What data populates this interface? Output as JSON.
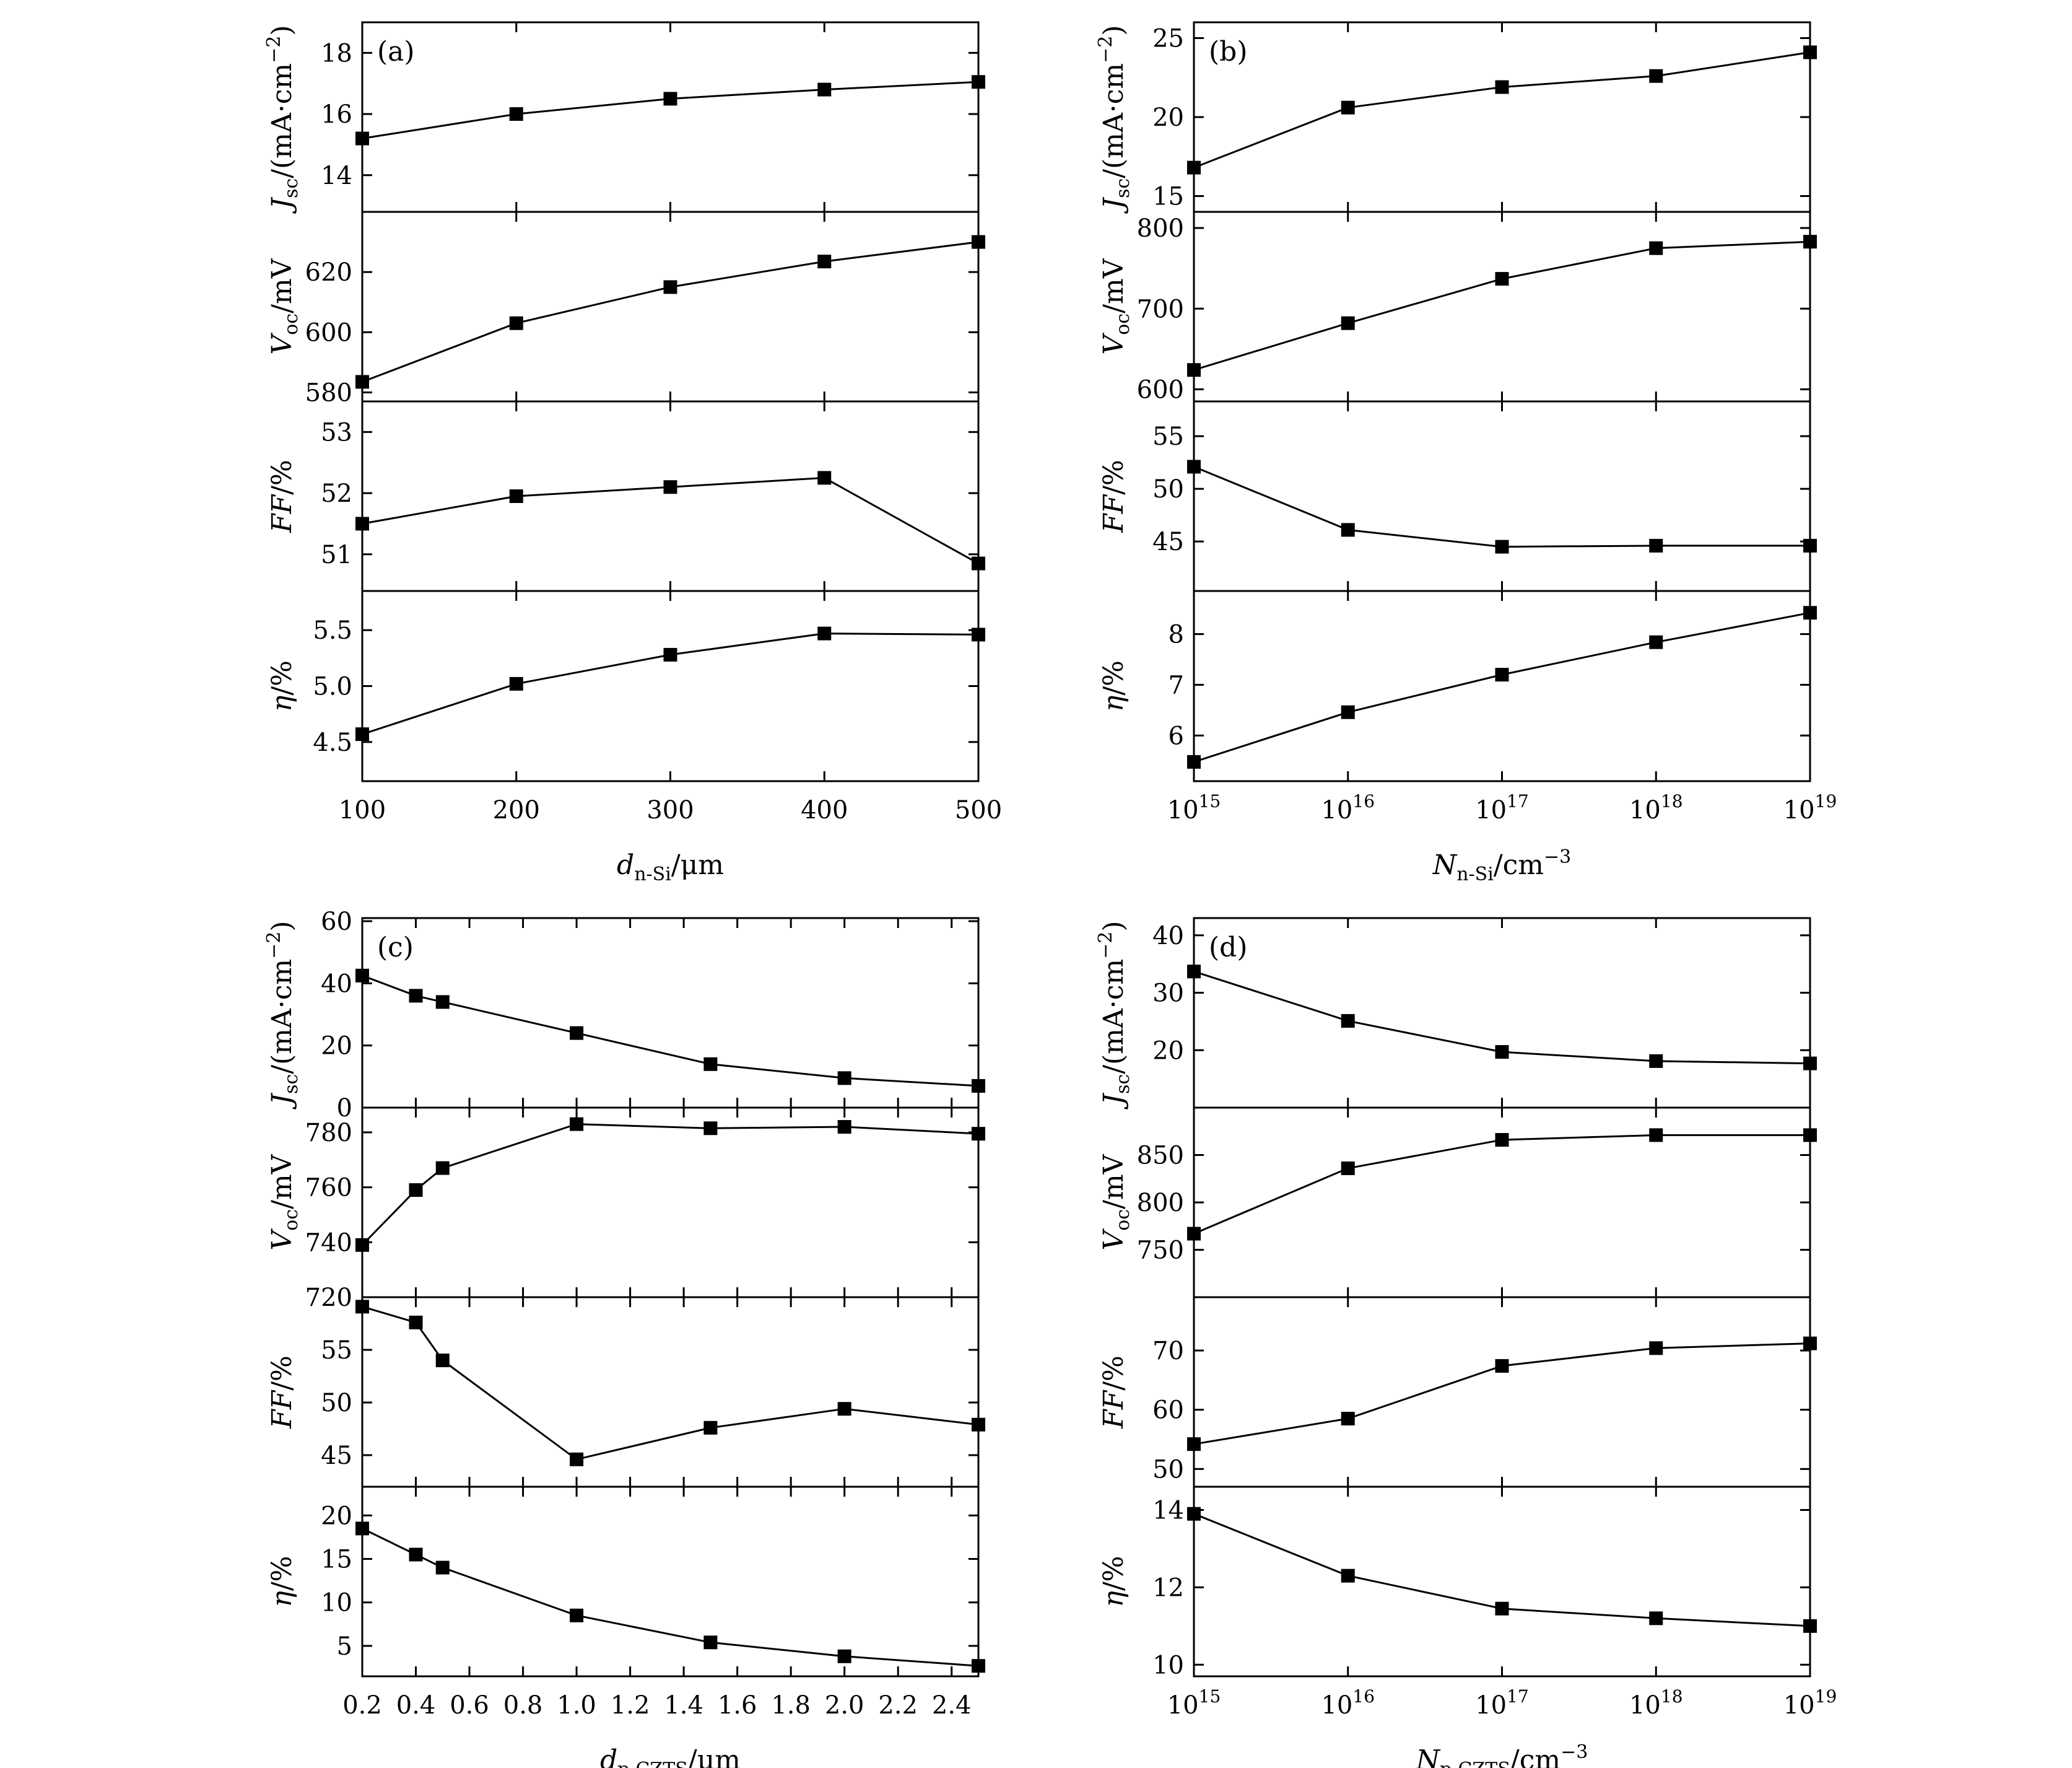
{
  "chart_data": [
    {
      "type": "line",
      "panel_label": "(a)",
      "xlabel": {
        "main": "d",
        "sub": "n-Si",
        "tail": "/μm"
      },
      "x_scale": "linear",
      "x": [
        100,
        200,
        300,
        400,
        500
      ],
      "xlim": [
        100,
        500
      ],
      "xticks": [
        100,
        200,
        300,
        400,
        500
      ],
      "xtick_labels": [
        "100",
        "200",
        "300",
        "400",
        "500"
      ],
      "subplots": [
        {
          "ylabel": {
            "main": "J",
            "sub": "sc",
            "tail": "/(mA·cm",
            "sup": "−2",
            "close": ")"
          },
          "ylim": [
            12.8,
            19.0
          ],
          "yticks": [
            14,
            16,
            18
          ],
          "ytick_labels": [
            "14",
            "16",
            "18"
          ],
          "values": [
            15.2,
            16.0,
            16.5,
            16.8,
            17.05
          ]
        },
        {
          "ylabel": {
            "main": "V",
            "sub": "oc",
            "tail": "/mV"
          },
          "ylim": [
            577,
            640
          ],
          "yticks": [
            580,
            600,
            620
          ],
          "ytick_labels": [
            "580",
            "600",
            "620"
          ],
          "values": [
            583.5,
            603,
            615,
            623.5,
            630
          ]
        },
        {
          "ylabel": {
            "main": "FF",
            "tail": "/%"
          },
          "ylim": [
            50.4,
            53.5
          ],
          "yticks": [
            51,
            52,
            53
          ],
          "ytick_labels": [
            "51",
            "52",
            "53"
          ],
          "values": [
            51.5,
            51.95,
            52.1,
            52.25,
            50.85
          ]
        },
        {
          "ylabel": {
            "main": "η",
            "tail": "/%"
          },
          "ylim": [
            4.15,
            5.85
          ],
          "yticks": [
            4.5,
            5.0,
            5.5
          ],
          "ytick_labels": [
            "4.5",
            "5.0",
            "5.5"
          ],
          "values": [
            4.57,
            5.02,
            5.28,
            5.47,
            5.46
          ]
        }
      ]
    },
    {
      "type": "line",
      "panel_label": "(b)",
      "xlabel": {
        "main": "N",
        "sub": "n-Si",
        "tail": "/cm",
        "sup": "−3"
      },
      "x_scale": "log",
      "x": [
        1000000000000000.0,
        1e+16,
        1e+17,
        1e+18,
        1e+19
      ],
      "xlim": [
        1000000000000000.0,
        1e+19
      ],
      "xticks": [
        1000000000000000.0,
        1e+16,
        1e+17,
        1e+18,
        1e+19
      ],
      "xtick_labels": [
        [
          "10",
          "15"
        ],
        [
          "10",
          "16"
        ],
        [
          "10",
          "17"
        ],
        [
          "10",
          "18"
        ],
        [
          "10",
          "19"
        ]
      ],
      "subplots": [
        {
          "ylabel": {
            "main": "J",
            "sub": "sc",
            "tail": "/(mA·cm",
            "sup": "−2",
            "close": ")"
          },
          "ylim": [
            14.0,
            26.0
          ],
          "yticks": [
            15,
            20,
            25
          ],
          "ytick_labels": [
            "15",
            "20",
            "25"
          ],
          "values": [
            16.8,
            20.6,
            21.9,
            22.6,
            24.1
          ]
        },
        {
          "ylabel": {
            "main": "V",
            "sub": "oc",
            "tail": "/mV"
          },
          "ylim": [
            585,
            820
          ],
          "yticks": [
            600,
            700,
            800
          ],
          "ytick_labels": [
            "600",
            "700",
            "800"
          ],
          "values": [
            624,
            682,
            737,
            775,
            783
          ]
        },
        {
          "ylabel": {
            "main": "FF",
            "tail": "/%"
          },
          "ylim": [
            40.3,
            58.3
          ],
          "yticks": [
            45,
            50,
            55
          ],
          "ytick_labels": [
            "45",
            "50",
            "55"
          ],
          "values": [
            52.1,
            46.1,
            44.5,
            44.6,
            44.6
          ]
        },
        {
          "ylabel": {
            "main": "η",
            "tail": "/%"
          },
          "ylim": [
            5.1,
            8.85
          ],
          "yticks": [
            6,
            7,
            8
          ],
          "ytick_labels": [
            "6",
            "7",
            "8"
          ],
          "values": [
            5.48,
            6.46,
            7.2,
            7.84,
            8.42
          ]
        }
      ]
    },
    {
      "type": "line",
      "panel_label": "(c)",
      "xlabel": {
        "main": "d",
        "sub": "p-CZTS",
        "tail": "/μm"
      },
      "x_scale": "linear",
      "x": [
        0.2,
        0.4,
        0.5,
        1.0,
        1.5,
        2.0,
        2.5
      ],
      "xlim": [
        0.2,
        2.5
      ],
      "xticks": [
        0.2,
        0.4,
        0.6,
        0.8,
        1.0,
        1.2,
        1.4,
        1.6,
        1.8,
        2.0,
        2.2,
        2.4
      ],
      "xtick_labels": [
        "0.2",
        "0.4",
        "0.6",
        "0.8",
        "1.0",
        "1.2",
        "1.4",
        "1.6",
        "1.8",
        "2.0",
        "2.2",
        "2.4"
      ],
      "subplots": [
        {
          "ylabel": {
            "main": "J",
            "sub": "sc",
            "tail": "/(mA·cm",
            "sup": "−2",
            "close": ")"
          },
          "ylim": [
            0,
            61
          ],
          "yticks": [
            0,
            20,
            40,
            60
          ],
          "ytick_labels": [
            "0",
            "20",
            "40",
            "60"
          ],
          "values": [
            42.5,
            36,
            34,
            24,
            14,
            9.5,
            7
          ]
        },
        {
          "ylabel": {
            "main": "V",
            "sub": "oc",
            "tail": "/mV"
          },
          "ylim": [
            720,
            789
          ],
          "yticks": [
            720,
            740,
            760,
            780
          ],
          "ytick_labels": [
            "720",
            "740",
            "760",
            "780"
          ],
          "values": [
            739,
            759,
            767,
            783,
            781.5,
            782,
            779.5
          ]
        },
        {
          "ylabel": {
            "main": "FF",
            "tail": "/%"
          },
          "ylim": [
            42.0,
            60.0
          ],
          "yticks": [
            45,
            50,
            55
          ],
          "ytick_labels": [
            "45",
            "50",
            "55"
          ],
          "values": [
            59.1,
            57.6,
            54.0,
            44.6,
            47.6,
            49.4,
            47.9
          ]
        },
        {
          "ylabel": {
            "main": "η",
            "tail": "/%"
          },
          "ylim": [
            1.5,
            23.3
          ],
          "yticks": [
            5,
            10,
            15,
            20
          ],
          "ytick_labels": [
            "5",
            "10",
            "15",
            "20"
          ],
          "values": [
            18.5,
            15.5,
            14.0,
            8.5,
            5.4,
            3.8,
            2.7
          ]
        }
      ]
    },
    {
      "type": "line",
      "panel_label": "(d)",
      "xlabel": {
        "main": "N",
        "sub": "p-CZTS",
        "tail": "/cm",
        "sup": "−3"
      },
      "x_scale": "log",
      "x": [
        1000000000000000.0,
        1e+16,
        1e+17,
        1e+18,
        1e+19
      ],
      "xlim": [
        1000000000000000.0,
        1e+19
      ],
      "xticks": [
        1000000000000000.0,
        1e+16,
        1e+17,
        1e+18,
        1e+19
      ],
      "xtick_labels": [
        [
          "10",
          "15"
        ],
        [
          "10",
          "16"
        ],
        [
          "10",
          "17"
        ],
        [
          "10",
          "18"
        ],
        [
          "10",
          "19"
        ]
      ],
      "subplots": [
        {
          "ylabel": {
            "main": "J",
            "sub": "sc",
            "tail": "/(mA·cm",
            "sup": "−2",
            "close": ")"
          },
          "ylim": [
            10.0,
            43.0
          ],
          "yticks": [
            20,
            30,
            40
          ],
          "ytick_labels": [
            "20",
            "30",
            "40"
          ],
          "values": [
            33.7,
            25.1,
            19.7,
            18.1,
            17.7
          ]
        },
        {
          "ylabel": {
            "main": "V",
            "sub": "oc",
            "tail": "/mV"
          },
          "ylim": [
            700,
            900
          ],
          "yticks": [
            750,
            800,
            850
          ],
          "ytick_labels": [
            "750",
            "800",
            "850"
          ],
          "values": [
            767,
            836,
            866,
            871,
            871
          ]
        },
        {
          "ylabel": {
            "main": "FF",
            "tail": "/%"
          },
          "ylim": [
            47.0,
            79.0
          ],
          "yticks": [
            50,
            60,
            70
          ],
          "ytick_labels": [
            "50",
            "60",
            "70"
          ],
          "values": [
            54.2,
            58.5,
            67.4,
            70.4,
            71.2
          ]
        },
        {
          "ylabel": {
            "main": "η",
            "tail": "/%"
          },
          "ylim": [
            9.7,
            14.6
          ],
          "yticks": [
            10,
            12,
            14
          ],
          "ytick_labels": [
            "10",
            "12",
            "14"
          ],
          "values": [
            13.9,
            12.3,
            11.45,
            11.2,
            11.0
          ]
        }
      ]
    }
  ]
}
